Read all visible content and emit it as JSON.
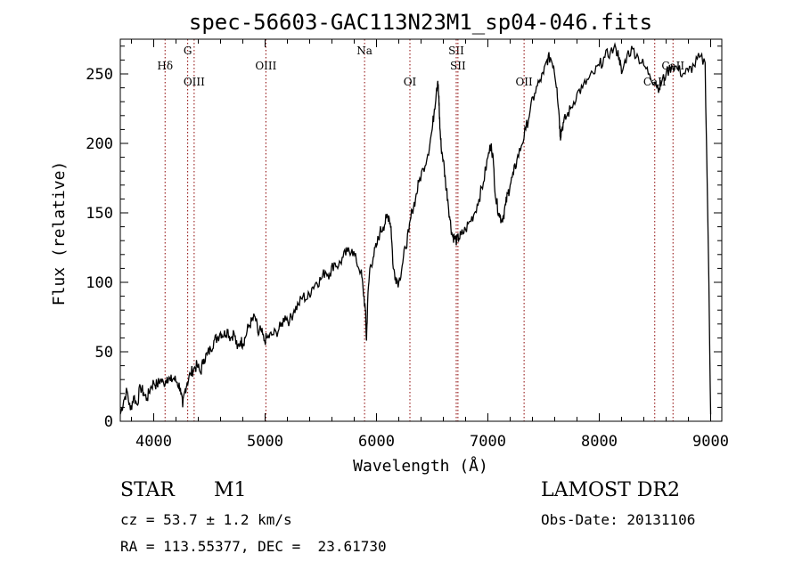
{
  "chart_data": {
    "type": "line",
    "title": "spec-56603-GAC113N23M1_sp04-046.fits",
    "xlabel": "Wavelength (Å)",
    "ylabel": "Flux (relative)",
    "xlim": [
      3700,
      9100
    ],
    "ylim": [
      0,
      275
    ],
    "xticks": [
      4000,
      5000,
      6000,
      7000,
      8000,
      9000
    ],
    "yticks": [
      0,
      50,
      100,
      150,
      200,
      250
    ],
    "grid": false,
    "series": [
      {
        "x": [
          3700,
          3730,
          3760,
          3790,
          3820,
          3850,
          3880,
          3910,
          3940,
          3970,
          4000,
          4030,
          4060,
          4090,
          4120,
          4150,
          4180,
          4210,
          4240,
          4260,
          4280,
          4300,
          4330,
          4360,
          4390,
          4420,
          4450,
          4480,
          4510,
          4540,
          4570,
          4600,
          4630,
          4660,
          4690,
          4720,
          4750,
          4780,
          4800,
          4820,
          4850,
          4880,
          4910,
          4940,
          4960,
          4990,
          5020,
          5060,
          5100,
          5140,
          5180,
          5220,
          5260,
          5300,
          5340,
          5380,
          5420,
          5460,
          5500,
          5540,
          5580,
          5620,
          5660,
          5700,
          5740,
          5780,
          5820,
          5860,
          5880,
          5900,
          5910,
          5920,
          5940,
          5970,
          6000,
          6030,
          6060,
          6090,
          6110,
          6130,
          6150,
          6170,
          6200,
          6230,
          6260,
          6290,
          6320,
          6350,
          6380,
          6420,
          6460,
          6500,
          6520,
          6540,
          6550,
          6560,
          6563,
          6570,
          6580,
          6600,
          6620,
          6640,
          6660,
          6680,
          6700,
          6720,
          6740,
          6760,
          6800,
          6840,
          6880,
          6920,
          6960,
          7000,
          7030,
          7050,
          7070,
          7100,
          7120,
          7140,
          7160,
          7180,
          7200,
          7230,
          7260,
          7300,
          7340,
          7380,
          7420,
          7460,
          7500,
          7530,
          7560,
          7590,
          7620,
          7640,
          7650,
          7660,
          7680,
          7710,
          7750,
          7800,
          7850,
          7900,
          7950,
          8000,
          8050,
          8100,
          8150,
          8180,
          8200,
          8250,
          8300,
          8350,
          8400,
          8450,
          8500,
          8540,
          8560,
          8600,
          8650,
          8700,
          8750,
          8800,
          8850,
          8900,
          8950,
          8980,
          9000
        ],
        "y": [
          5,
          15,
          22,
          8,
          18,
          12,
          25,
          20,
          16,
          24,
          28,
          26,
          30,
          27,
          32,
          29,
          31,
          28,
          24,
          10,
          22,
          28,
          34,
          38,
          40,
          35,
          45,
          48,
          52,
          58,
          60,
          64,
          62,
          66,
          60,
          64,
          52,
          58,
          56,
          60,
          68,
          72,
          75,
          62,
          66,
          58,
          60,
          62,
          64,
          68,
          76,
          72,
          80,
          84,
          90,
          88,
          96,
          100,
          102,
          108,
          106,
          114,
          112,
          118,
          122,
          124,
          115,
          108,
          95,
          80,
          58,
          85,
          110,
          118,
          126,
          136,
          140,
          146,
          148,
          140,
          110,
          104,
          100,
          112,
          125,
          136,
          152,
          160,
          172,
          182,
          192,
          210,
          225,
          240,
          245,
          232,
          226,
          210,
          198,
          188,
          172,
          160,
          145,
          134,
          132,
          130,
          132,
          134,
          138,
          144,
          150,
          160,
          172,
          190,
          200,
          185,
          160,
          150,
          145,
          148,
          156,
          164,
          170,
          178,
          188,
          198,
          210,
          224,
          236,
          244,
          250,
          260,
          262,
          256,
          240,
          220,
          205,
          210,
          215,
          220,
          226,
          236,
          240,
          246,
          250,
          256,
          262,
          266,
          268,
          262,
          250,
          264,
          268,
          262,
          256,
          250,
          244,
          240,
          244,
          250,
          256,
          254,
          250,
          252,
          256,
          262,
          258,
          120,
          5
        ]
      }
    ],
    "line_markers": [
      {
        "label": "Hδ",
        "wavelength": 4102,
        "row": 1
      },
      {
        "label": "G",
        "wavelength": 4305,
        "row": 0
      },
      {
        "label": "OIII",
        "wavelength": 4363,
        "row": 2
      },
      {
        "label": "OIII",
        "wavelength": 5007,
        "row": 1
      },
      {
        "label": "Na",
        "wavelength": 5893,
        "row": 0
      },
      {
        "label": "OI",
        "wavelength": 6300,
        "row": 2
      },
      {
        "label": "SII",
        "wavelength": 6716,
        "row": 0
      },
      {
        "label": "SII",
        "wavelength": 6731,
        "row": 1
      },
      {
        "label": "OII",
        "wavelength": 7325,
        "row": 2
      },
      {
        "label": "CaII",
        "wavelength": 8498,
        "row": 2
      },
      {
        "label": "CaII",
        "wavelength": 8662,
        "row": 1
      }
    ],
    "marker_color": "#8b0000"
  },
  "info": {
    "object_type": "STAR",
    "subclass": "M1",
    "survey": "LAMOST DR2",
    "cz": "cz = 53.7 ± 1.2 km/s",
    "obs_date": "Obs-Date: 20131106",
    "radec": "RA = 113.55377, DEC =  23.61730"
  }
}
